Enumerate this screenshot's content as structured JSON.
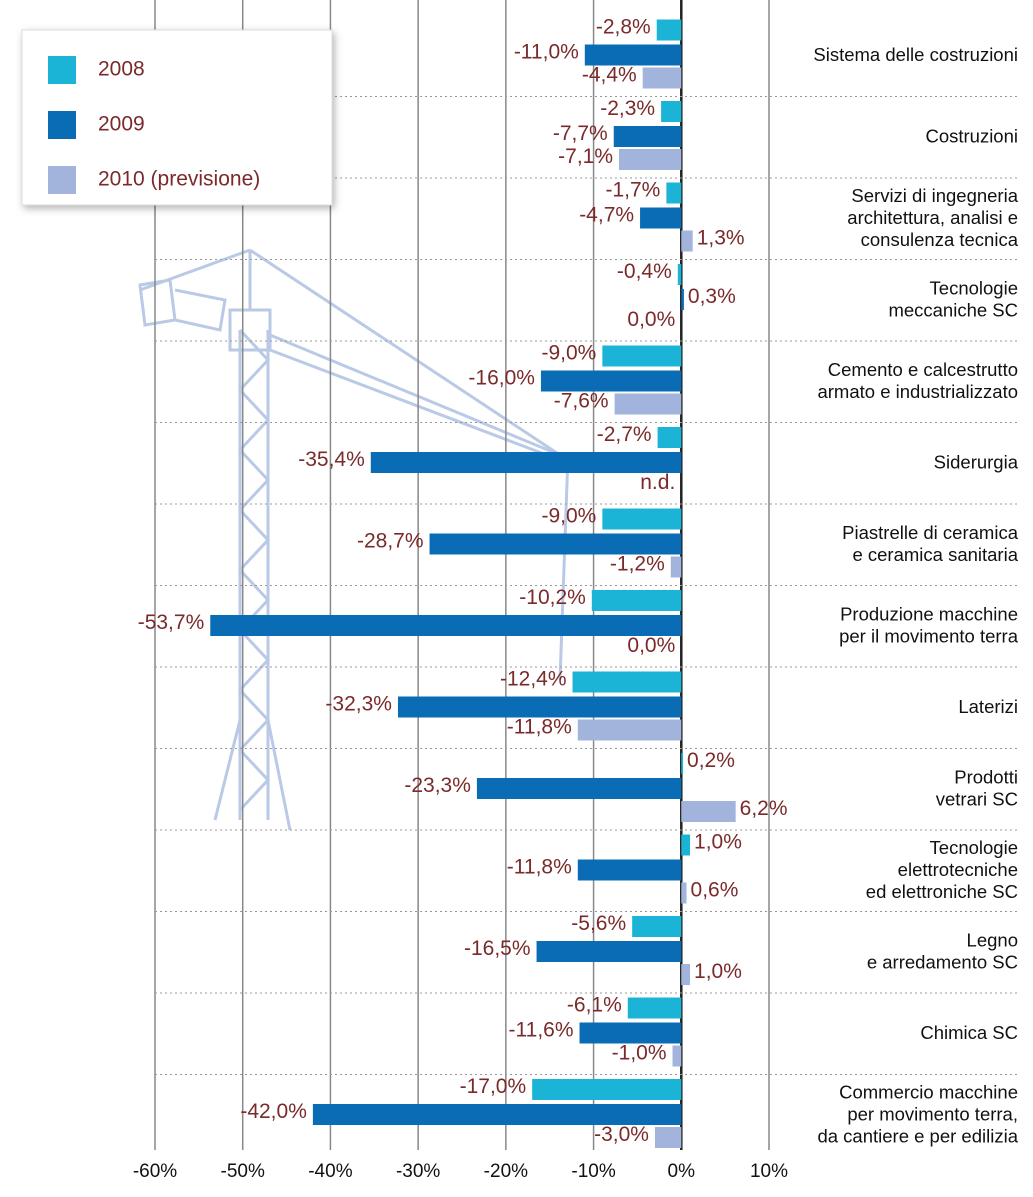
{
  "chart_data": {
    "type": "bar",
    "orientation": "horizontal",
    "categories": [
      [
        "Sistema delle costruzioni"
      ],
      [
        "Costruzioni"
      ],
      [
        "Servizi di ingegneria",
        "architettura, analisi e",
        "consulenza tecnica"
      ],
      [
        "Tecnologie",
        "meccaniche SC"
      ],
      [
        "Cemento e calcestrutto",
        "armato e industrializzato"
      ],
      [
        "Siderurgia"
      ],
      [
        "Piastrelle di ceramica",
        "e ceramica sanitaria"
      ],
      [
        "Produzione macchine",
        "per il movimento terra"
      ],
      [
        "Laterizi"
      ],
      [
        "Prodotti",
        "vetrari SC"
      ],
      [
        "Tecnologie",
        "elettrotecniche",
        "ed elettroniche SC"
      ],
      [
        "Legno",
        "e arredamento SC"
      ],
      [
        "Chimica SC"
      ],
      [
        "Commercio macchine",
        "per movimento terra,",
        "da cantiere e per edilizia"
      ]
    ],
    "series": [
      {
        "name": "2008",
        "color": "#1cb4d6",
        "values": [
          -2.8,
          -2.3,
          -1.7,
          -0.4,
          -9.0,
          -2.7,
          -9.0,
          -10.2,
          -12.4,
          0.2,
          1.0,
          -5.6,
          -6.1,
          -17.0
        ],
        "value_labels": [
          "-2,8%",
          "-2,3%",
          "-1,7%",
          "-0,4%",
          "-9,0%",
          "-2,7%",
          "-9,0%",
          "-10,2%",
          "-12,4%",
          "0,2%",
          "1,0%",
          "-5,6%",
          "-6,1%",
          "-17,0%"
        ]
      },
      {
        "name": "2009",
        "color": "#0a6cb4",
        "values": [
          -11.0,
          -7.7,
          -4.7,
          0.3,
          -16.0,
          -35.4,
          -28.7,
          -53.7,
          -32.3,
          -23.3,
          -11.8,
          -16.5,
          -11.6,
          -42.0
        ],
        "value_labels": [
          "-11,0%",
          "-7,7%",
          "-4,7%",
          "0,3%",
          "-16,0%",
          "-35,4%",
          "-28,7%",
          "-53,7%",
          "-32,3%",
          "-23,3%",
          "-11,8%",
          "-16,5%",
          "-11,6%",
          "-42,0%"
        ]
      },
      {
        "name": "2010 (previsione)",
        "color": "#a2b4dc",
        "values": [
          -4.4,
          -7.1,
          1.3,
          0.0,
          -7.6,
          null,
          -1.2,
          0.0,
          -11.8,
          6.2,
          0.6,
          1.0,
          -1.0,
          -3.0
        ],
        "value_labels": [
          "-4,4%",
          "-7,1%",
          "1,3%",
          "0,0%",
          "-7,6%",
          "n.d.",
          "-1,2%",
          "0,0%",
          "-11,8%",
          "6,2%",
          "0,6%",
          "1,0%",
          "-1,0%",
          "-3,0%"
        ]
      }
    ],
    "xlim": [
      -60,
      10
    ],
    "xticks": [
      {
        "value": -60,
        "label": "-60%"
      },
      {
        "value": -50,
        "label": "-50%"
      },
      {
        "value": -40,
        "label": "-40%"
      },
      {
        "value": -30,
        "label": "-30%"
      },
      {
        "value": -20,
        "label": "-20%"
      },
      {
        "value": -10,
        "label": "-10%"
      },
      {
        "value": 0,
        "label": "0%"
      },
      {
        "value": 10,
        "label": "10%"
      }
    ],
    "grid": true,
    "legend": "top-left"
  }
}
